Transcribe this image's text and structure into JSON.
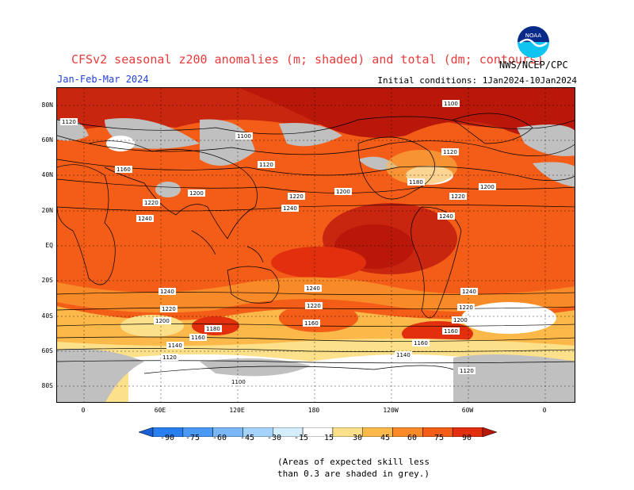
{
  "header": {
    "title": "CFSv2 seasonal z200 anomalies (m; shaded) and total (dm; contours)",
    "period": "Jan-Feb-Mar 2024",
    "initial_conditions": "Initial conditions: 1Jan2024-10Jan2024",
    "agency": "NWS/NCEP/CPC",
    "logo_text": "NOAA"
  },
  "map": {
    "lat_labels": [
      "80N",
      "60N",
      "40N",
      "20N",
      "EQ",
      "20S",
      "40S",
      "60S",
      "80S"
    ],
    "lon_labels": [
      "0",
      "60E",
      "120E",
      "180",
      "120W",
      "60W",
      "0"
    ],
    "contour_labels": [
      "1100",
      "1120",
      "1140",
      "1160",
      "1180",
      "1200",
      "1220",
      "1240"
    ],
    "colors": {
      "grey_low_skill": "#c0c0c0",
      "ocean_land_neutral": "#ffffff"
    }
  },
  "colorbar": {
    "labels": [
      "-90",
      "-75",
      "-60",
      "-45",
      "-30",
      "-15",
      "15",
      "30",
      "45",
      "60",
      "75",
      "90"
    ],
    "colors": [
      "#1a5fd8",
      "#2a7ff0",
      "#4a99f5",
      "#79b7f7",
      "#a6d3fb",
      "#d5eefd",
      "#ffffff",
      "#fde08a",
      "#fcb848",
      "#f88a28",
      "#f35d17",
      "#e2300f",
      "#b8170a"
    ]
  },
  "footnote": {
    "line1": "(Areas of expected skill less",
    "line2": "than 0.3 are shaded in grey.)"
  }
}
